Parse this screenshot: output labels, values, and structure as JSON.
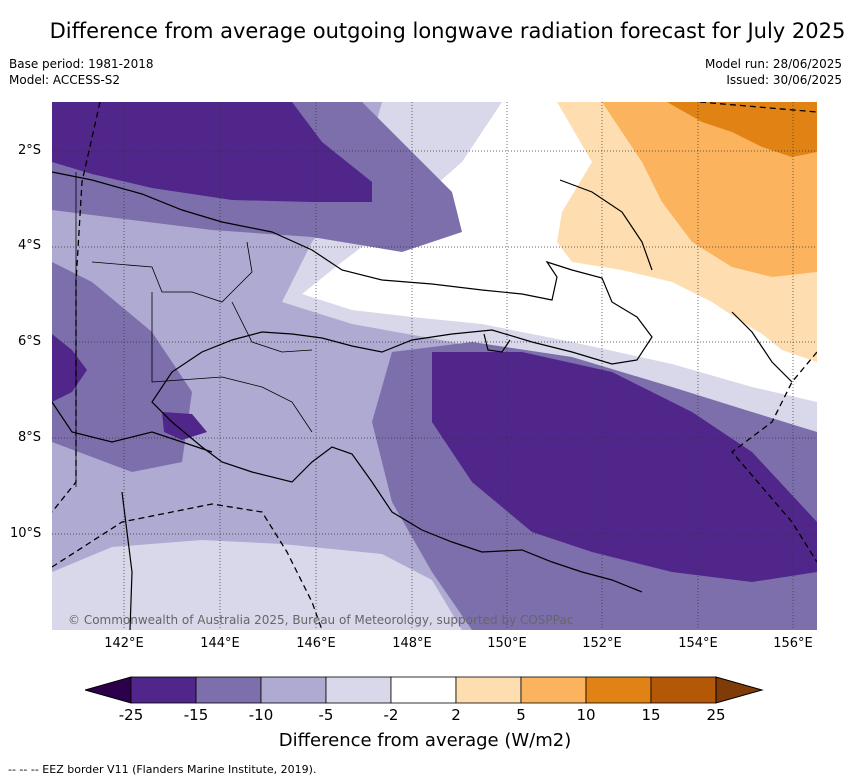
{
  "title": "Difference from average outgoing longwave radiation forecast for July 2025",
  "base_period": "Base period: 1981-2018",
  "model": "Model: ACCESS-S2",
  "model_run": "Model run: 28/06/2025",
  "issued": "Issued: 30/06/2025",
  "lat_labels": [
    "2°S",
    "4°S",
    "6°S",
    "8°S",
    "10°S"
  ],
  "lon_labels": [
    "142°E",
    "144°E",
    "146°E",
    "148°E",
    "150°E",
    "152°E",
    "154°E",
    "156°E"
  ],
  "copyright": "© Commonwealth of Australia 2025, Bureau of Meteorology, supported by COSPPac",
  "colorbar": {
    "ticks": [
      "-25",
      "-15",
      "-10",
      "-5",
      "-2",
      "2",
      "5",
      "10",
      "15",
      "25"
    ],
    "colors": [
      "#50268a",
      "#7c6fab",
      "#aeaad1",
      "#d8d8ea",
      "#ffffff",
      "#fedeb0",
      "#fbb35e",
      "#e08214",
      "#b35806"
    ],
    "under_color": "#2d004b",
    "over_color": "#7f3b08",
    "label": "Difference from average (W/m2)"
  },
  "legend_note": "--  --  -- EEZ border V11 (Flanders Marine Institute, 2019)."
}
